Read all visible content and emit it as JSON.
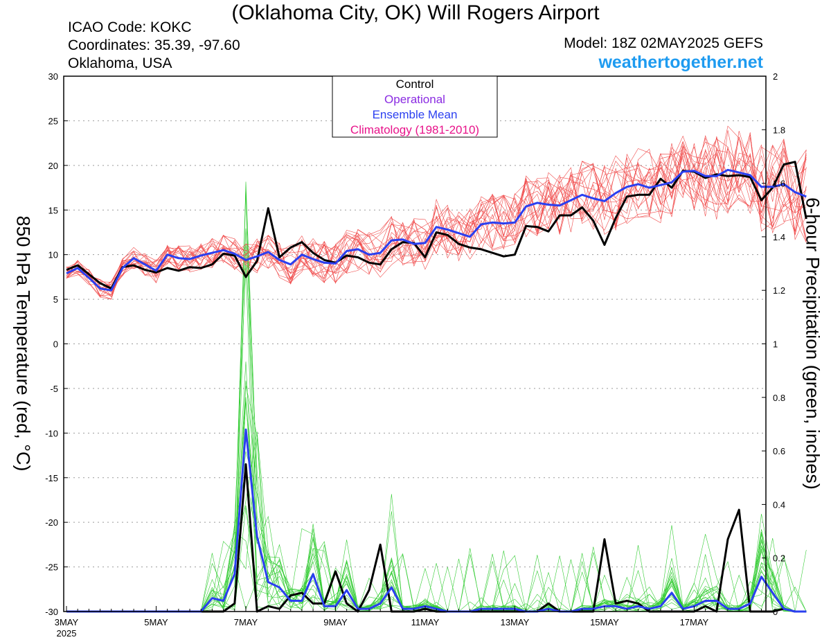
{
  "header": {
    "title": "(Oklahoma City, OK) Will Rogers Airport",
    "icao": "ICAO Code: KOKC",
    "coords": "Coordinates: 35.39, -97.60",
    "region": "Oklahoma, USA",
    "model": "Model: 18Z 02MAY2025 GEFS",
    "site": "weathertogether.net"
  },
  "colors": {
    "site": "#1e9bf0",
    "members_temp": "#f04a4a",
    "members_precip": "#33cc33",
    "control": "#000000",
    "operational": "#8a2be2",
    "mean": "#2a3ff0",
    "climatology": "#e8138a"
  },
  "chart_data": {
    "type": "line",
    "ylabel": "850 hPa Temperature (red, °C)",
    "ylabel2": "6-hour Precipitation (green, inches)",
    "ylim": [
      -30,
      30
    ],
    "y2lim": [
      0,
      2
    ],
    "yticks": [
      "30",
      "25",
      "20",
      "15",
      "10",
      "5",
      "0",
      "-5",
      "-10",
      "-15",
      "-20",
      "-25",
      "-30"
    ],
    "y2ticks": [
      "2",
      "1.8",
      "1.6",
      "1.4",
      "1.2",
      "1",
      "0.8",
      "0.6",
      "0.4",
      "0.2",
      "0"
    ],
    "xrange": [
      0,
      15.6
    ],
    "xticks": [
      {
        "x": 0,
        "label": "3MAY",
        "sub": "2025"
      },
      {
        "x": 2,
        "label": "5MAY"
      },
      {
        "x": 4,
        "label": "7MAY"
      },
      {
        "x": 6,
        "label": "9MAY"
      },
      {
        "x": 8,
        "label": "11MAY"
      },
      {
        "x": 10,
        "label": "13MAY"
      },
      {
        "x": 12,
        "label": "15MAY"
      },
      {
        "x": 14,
        "label": "17MAY"
      }
    ],
    "grid": "dotted",
    "legend": {
      "placement": "top-center",
      "entries": [
        {
          "label": "Control",
          "color": "#000000"
        },
        {
          "label": "Operational",
          "color": "#8a2be2"
        },
        {
          "label": "Ensemble Mean",
          "color": "#2a3ff0"
        },
        {
          "label": "Climatology (1981-2010)",
          "color": "#e8138a"
        }
      ]
    },
    "time_step_days": 0.25,
    "series": [
      {
        "axis": "left",
        "color": "#000000",
        "values": [
          8.3,
          8.8,
          7.8,
          6.8,
          6.2,
          8.6,
          8.8,
          8.3,
          8.0,
          8.5,
          8.2,
          8.6,
          8.5,
          8.9,
          10.1,
          9.9,
          7.5,
          9.3,
          15.2,
          9.7,
          10.8,
          11.4,
          10.2,
          9.4,
          9.1,
          9.9,
          9.7,
          9.1,
          8.9,
          10.6,
          11.4,
          11.3,
          9.7,
          12.5,
          12.2,
          11.2,
          10.8,
          10.6,
          10.2,
          9.8,
          10.0,
          13.2,
          13.1,
          12.6,
          14.4,
          14.4,
          15.3,
          13.8,
          11.1,
          14.1,
          16.5,
          16.7,
          16.7,
          18.5,
          17.5,
          19.4,
          19.3,
          18.6,
          19.0,
          18.8,
          18.9,
          18.7,
          16.1,
          17.5,
          20.1,
          20.4,
          14.0
        ]
      },
      {
        "axis": "left",
        "color": "#2a3ff0",
        "values": [
          7.9,
          8.5,
          7.4,
          6.2,
          6.0,
          8.5,
          9.6,
          8.9,
          8.2,
          10.0,
          9.6,
          9.5,
          9.9,
          10.2,
          10.5,
          10.1,
          9.4,
          9.8,
          10.3,
          9.4,
          8.9,
          10.0,
          9.5,
          9.1,
          9.0,
          10.4,
          10.6,
          10.0,
          10.2,
          11.6,
          11.7,
          11.2,
          11.3,
          13.1,
          12.8,
          12.4,
          12.0,
          13.4,
          13.6,
          13.5,
          13.6,
          15.4,
          15.8,
          15.6,
          15.5,
          16.1,
          16.7,
          16.3,
          16.0,
          16.9,
          17.6,
          17.9,
          17.5,
          17.8,
          18.1,
          19.3,
          19.4,
          18.8,
          18.8,
          19.5,
          19.2,
          18.9,
          17.6,
          17.6,
          17.9,
          17.0,
          16.5
        ]
      },
      {
        "axis": "right",
        "color": "#000000",
        "values": [
          0,
          0,
          0,
          0,
          0,
          0,
          0,
          0,
          0,
          0,
          0,
          0,
          0,
          0,
          0,
          0.03,
          0.55,
          0,
          0.02,
          0.01,
          0.06,
          0.07,
          0.03,
          0.03,
          0.15,
          0.03,
          0,
          0.08,
          0.25,
          0,
          0,
          0,
          0.01,
          0,
          0,
          0,
          0,
          0,
          0,
          0,
          0,
          0,
          0,
          0.03,
          0,
          0,
          0,
          0,
          0.27,
          0.03,
          0.04,
          0.03,
          0,
          0,
          0,
          0,
          0,
          0.02,
          0,
          0.27,
          0.38,
          0,
          0,
          0,
          0.01,
          0,
          0
        ]
      },
      {
        "axis": "right",
        "color": "#2a3ff0",
        "values": [
          0,
          0,
          0,
          0,
          0,
          0,
          0,
          0,
          0,
          0,
          0,
          0,
          0,
          0.05,
          0.04,
          0.14,
          0.68,
          0.28,
          0.11,
          0.09,
          0.04,
          0.04,
          0.14,
          0.02,
          0.02,
          0.08,
          0.01,
          0.01,
          0.03,
          0.09,
          0.01,
          0.01,
          0.02,
          0.01,
          0,
          0,
          0,
          0.01,
          0.01,
          0.01,
          0.01,
          0,
          0,
          0.01,
          0,
          0,
          0.01,
          0.01,
          0.02,
          0.02,
          0.01,
          0.02,
          0.01,
          0.02,
          0.07,
          0.01,
          0.02,
          0.04,
          0.04,
          0.01,
          0.01,
          0.03,
          0.13,
          0.07,
          0.01,
          0,
          0
        ]
      }
    ]
  }
}
